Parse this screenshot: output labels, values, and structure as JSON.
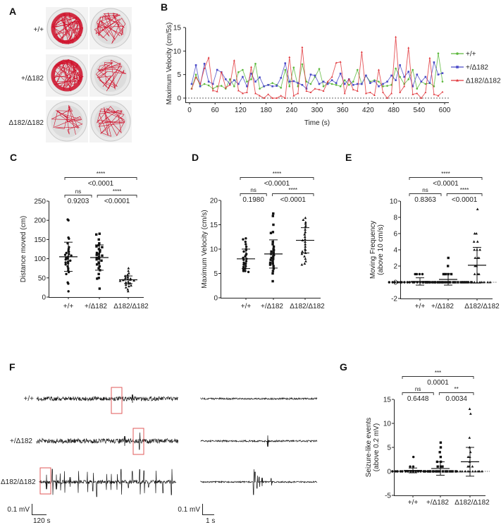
{
  "panels": {
    "A": "A",
    "B": "B",
    "C": "C",
    "D": "D",
    "E": "E",
    "F": "F",
    "G": "G"
  },
  "genotypes": [
    "+/+",
    "+/Δ182",
    "Δ182/Δ182"
  ],
  "colors": {
    "wt": "#5cb83c",
    "het": "#4b4bc8",
    "hom": "#e0353a",
    "trace": "#1a1a1a",
    "track": "#d0102a",
    "box": "#e05a5a"
  },
  "panel_A": {
    "row_labels": [
      "+/+",
      "+/Δ182",
      "Δ182/Δ182"
    ]
  },
  "panel_F": {
    "row_labels": [
      "+/+",
      "+/Δ182",
      "Δ182/Δ182"
    ],
    "left_scale": {
      "v": "0.1 mV",
      "t": "120 s"
    },
    "right_scale": {
      "v": "0.1 mV",
      "t": "1 s"
    }
  },
  "chart_data": [
    {
      "id": "B",
      "type": "line",
      "xlabel": "Time (s)",
      "ylabel": "Maximum Velocity  (cm/5s)",
      "xlim": [
        0,
        600
      ],
      "ylim": [
        0,
        15
      ],
      "xticks": [
        "0",
        "60",
        "120",
        "180",
        "240",
        "300",
        "360",
        "420",
        "480",
        "540",
        "600"
      ],
      "yticks": [
        "0",
        "5",
        "10",
        "15"
      ],
      "legend": "right",
      "x": [
        5,
        15,
        25,
        35,
        45,
        55,
        65,
        75,
        85,
        95,
        105,
        115,
        125,
        135,
        145,
        155,
        165,
        175,
        185,
        195,
        205,
        215,
        225,
        235,
        245,
        255,
        265,
        275,
        285,
        295,
        305,
        315,
        325,
        335,
        345,
        355,
        365,
        375,
        385,
        395,
        405,
        415,
        425,
        435,
        445,
        455,
        465,
        475,
        485,
        495,
        505,
        515,
        525,
        535,
        545,
        555,
        565,
        575,
        585,
        595
      ],
      "series": [
        {
          "name": "+/+",
          "color": "#5cb83c",
          "marker": "circle",
          "values": [
            2,
            5,
            2.5,
            3,
            2.7,
            2,
            2.5,
            2.6,
            2,
            4,
            2.5,
            5.5,
            6,
            3.5,
            4,
            7.3,
            2,
            2.5,
            2.8,
            3.2,
            2.8,
            2.2,
            6,
            2.5,
            6.5,
            2.5,
            7.2,
            3.5,
            3,
            4.5,
            6.2,
            2.5,
            3.2,
            3,
            2.8,
            2.5,
            3.8,
            2.8,
            3.5,
            6,
            3,
            4.8,
            3.5,
            3.8,
            3.5,
            2.5,
            2.6,
            2.8,
            6.3,
            4.5,
            3,
            4,
            6,
            2,
            3.5,
            3,
            3.2,
            2.5,
            9.5,
            3.5
          ]
        },
        {
          "name": "+/Δ182",
          "color": "#4b4bc8",
          "marker": "square",
          "values": [
            3,
            7,
            2.5,
            7.3,
            3.5,
            3,
            6,
            5.5,
            4,
            3,
            3.8,
            3,
            4.5,
            2.5,
            5.2,
            3.5,
            4.4,
            2.5,
            2.8,
            2.5,
            2.6,
            4.3,
            7.4,
            3.5,
            3.6,
            3.2,
            2.8,
            2,
            5,
            4.8,
            3,
            3.5,
            3,
            3.8,
            3.2,
            5.2,
            3,
            4,
            2.8,
            3,
            3,
            4.8,
            3.2,
            3.6,
            2.5,
            3,
            3.5,
            4.8,
            3.8,
            7,
            4.5,
            5.6,
            2.5,
            5,
            3.5,
            4.5,
            3.2,
            7.6,
            5,
            5.3
          ]
        },
        {
          "name": "Δ182/Δ182",
          "color": "#e0353a",
          "marker": "triangle",
          "values": [
            2,
            4.4,
            3,
            6.3,
            8.6,
            1.6,
            1.4,
            5.5,
            2.2,
            2.8,
            8,
            1.6,
            1,
            1.2,
            6.6,
            1,
            0.5,
            0,
            0.8,
            0,
            0,
            0.5,
            0,
            8.7,
            0.5,
            1,
            10.8,
            1.5,
            1.2,
            2,
            1.8,
            1.5,
            3.5,
            4.5,
            7.5,
            7.7,
            1,
            4,
            1.8,
            1.5,
            9.8,
            1,
            1.2,
            0.6,
            6,
            1.2,
            0,
            1,
            13,
            1.2,
            2.5,
            10.7,
            0.8,
            1,
            0,
            1.2,
            8.5,
            0.8,
            0.5,
            1.3
          ]
        }
      ]
    },
    {
      "id": "C",
      "type": "scatter",
      "ylabel": "Distance moved (cm)",
      "ylim": [
        0,
        250
      ],
      "yticks": [
        "0",
        "50",
        "100",
        "150",
        "200",
        "250"
      ],
      "categories": [
        "+/+",
        "+/Δ182",
        "Δ182/Δ182"
      ],
      "groups": [
        {
          "mean": 105,
          "sd": 38,
          "marker": "circle",
          "values": [
            200,
            202,
            155,
            152,
            140,
            130,
            125,
            120,
            118,
            115,
            112,
            110,
            108,
            105,
            103,
            100,
            98,
            95,
            92,
            90,
            88,
            85,
            80,
            75,
            70,
            65,
            60,
            38,
            35,
            15
          ]
        },
        {
          "mean": 103,
          "sd": 33,
          "marker": "square",
          "values": [
            165,
            163,
            150,
            140,
            135,
            132,
            130,
            125,
            122,
            118,
            115,
            112,
            110,
            108,
            105,
            102,
            100,
            98,
            95,
            90,
            88,
            85,
            80,
            75,
            70,
            60,
            50,
            48,
            22
          ]
        },
        {
          "mean": 45,
          "sd": 10,
          "marker": "triangle",
          "values": [
            75,
            68,
            62,
            58,
            55,
            52,
            50,
            48,
            47,
            46,
            45,
            44,
            43,
            42,
            40,
            38,
            36,
            35,
            32,
            30,
            28,
            25,
            20,
            15
          ]
        }
      ],
      "comparisons": [
        {
          "stars": "****",
          "p": "<0.0001",
          "span": "1-3"
        },
        {
          "stars": "ns",
          "p": "0.9203",
          "span": "1-2"
        },
        {
          "stars": "****",
          "p": "<0.0001",
          "span": "2-3"
        }
      ]
    },
    {
      "id": "D",
      "type": "scatter",
      "ylabel": "Maximum Velocity  (cm/s)",
      "ylim": [
        0,
        20
      ],
      "yticks": [
        "0",
        "5",
        "10",
        "15",
        "20"
      ],
      "categories": [
        "+/+",
        "+/Δ182",
        "Δ182/Δ182"
      ],
      "groups": [
        {
          "mean": 8,
          "sd": 2,
          "marker": "circle",
          "values": [
            12.2,
            12,
            11.5,
            11,
            10.5,
            10,
            9.8,
            9.5,
            9,
            8.8,
            8.5,
            8.2,
            8,
            7.8,
            7.5,
            7.2,
            7,
            6.8,
            6.5,
            6.3,
            6,
            5.8,
            5.5,
            5.5,
            5.3
          ]
        },
        {
          "mean": 9,
          "sd": 2.9,
          "marker": "square",
          "values": [
            17.3,
            16.8,
            15,
            13.5,
            13.3,
            11.5,
            11,
            10.5,
            10,
            9.8,
            9.5,
            9.3,
            9,
            8.8,
            8.5,
            8.2,
            8,
            7.8,
            7.5,
            7.2,
            7,
            6.8,
            6.5,
            6,
            5.5,
            5,
            3.4
          ]
        },
        {
          "mean": 11.8,
          "sd": 2.6,
          "marker": "triangle",
          "values": [
            16.4,
            16,
            15.5,
            15.2,
            14.8,
            14.5,
            14,
            13.5,
            13,
            12.5,
            12,
            11.8,
            11.5,
            11,
            10.5,
            10,
            9.8,
            9.5,
            9.2,
            9,
            8.5,
            8,
            7.5,
            7,
            6.8
          ]
        }
      ],
      "comparisons": [
        {
          "stars": "****",
          "p": "<0.0001",
          "span": "1-3"
        },
        {
          "stars": "ns",
          "p": "0.1980",
          "span": "1-2"
        },
        {
          "stars": "****",
          "p": "<0.0001",
          "span": "2-3"
        }
      ]
    },
    {
      "id": "E",
      "type": "scatter",
      "ylabel": "Moving Frequency",
      "ylabel2": "(above 10 cm/s)",
      "ylim": [
        -2,
        10
      ],
      "yticks": [
        "-2",
        "0",
        "2",
        "4",
        "6",
        "8",
        "10"
      ],
      "categories": [
        "+/+",
        "+/Δ182",
        "Δ182/Δ182"
      ],
      "groups": [
        {
          "mean": 0.1,
          "sd": 0.45,
          "marker": "circle",
          "values": [
            1,
            1,
            1,
            1,
            0,
            0,
            0,
            0,
            0,
            0,
            0,
            0,
            0,
            0,
            0,
            0,
            0,
            0,
            0,
            0,
            0,
            0,
            0,
            0,
            0,
            0,
            0,
            0
          ]
        },
        {
          "mean": 0.35,
          "sd": 0.7,
          "marker": "square",
          "values": [
            3,
            2,
            1,
            1,
            1,
            1,
            0,
            0,
            0,
            0,
            0,
            0,
            0,
            0,
            0,
            0,
            0,
            0,
            0,
            0,
            0,
            0,
            0,
            0,
            0,
            0
          ]
        },
        {
          "mean": 2.1,
          "sd": 2.2,
          "marker": "triangle",
          "values": [
            9,
            6,
            6,
            5,
            5,
            4,
            4,
            4,
            3,
            3,
            3,
            2,
            2,
            1,
            1,
            1,
            0,
            0,
            0,
            0,
            0,
            0,
            0,
            0,
            0,
            0,
            0,
            0
          ]
        }
      ],
      "comparisons": [
        {
          "stars": "****",
          "p": "<0.0001",
          "span": "1-3"
        },
        {
          "stars": "ns",
          "p": "0.8363",
          "span": "1-2"
        },
        {
          "stars": "****",
          "p": "<0.0001",
          "span": "2-3"
        }
      ]
    },
    {
      "id": "G",
      "type": "scatter",
      "ylabel": "Seizure-like events",
      "ylabel2": "(above 0.2 mV)",
      "ylim": [
        -5,
        15
      ],
      "yticks": [
        "-5",
        "0",
        "5",
        "10",
        "15"
      ],
      "categories": [
        "+/+",
        "+/Δ182",
        "Δ182/Δ182"
      ],
      "groups": [
        {
          "mean": 0.2,
          "sd": 0.5,
          "marker": "circle",
          "values": [
            3,
            1,
            1,
            0,
            0,
            0,
            0,
            0,
            0,
            0,
            0,
            0,
            0,
            0,
            0,
            0,
            0,
            0,
            0,
            0
          ]
        },
        {
          "mean": 0.6,
          "sd": 1.4,
          "marker": "square",
          "values": [
            6,
            5,
            4,
            3,
            2,
            2,
            1,
            1,
            1,
            0,
            0,
            0,
            0,
            0,
            0,
            0,
            0,
            0,
            0,
            0,
            0,
            0
          ]
        },
        {
          "mean": 2,
          "sd": 3,
          "marker": "triangle",
          "values": [
            13,
            12,
            7,
            5,
            4,
            3,
            3,
            2,
            1,
            1,
            1,
            0,
            0,
            0,
            0,
            0,
            0,
            0,
            0,
            0,
            0,
            0
          ]
        }
      ],
      "comparisons": [
        {
          "stars": "***",
          "p": "0.0001",
          "span": "1-3"
        },
        {
          "stars": "ns",
          "p": "0.6448",
          "span": "1-2"
        },
        {
          "stars": "**",
          "p": "0.0034",
          "span": "2-3"
        }
      ]
    }
  ]
}
